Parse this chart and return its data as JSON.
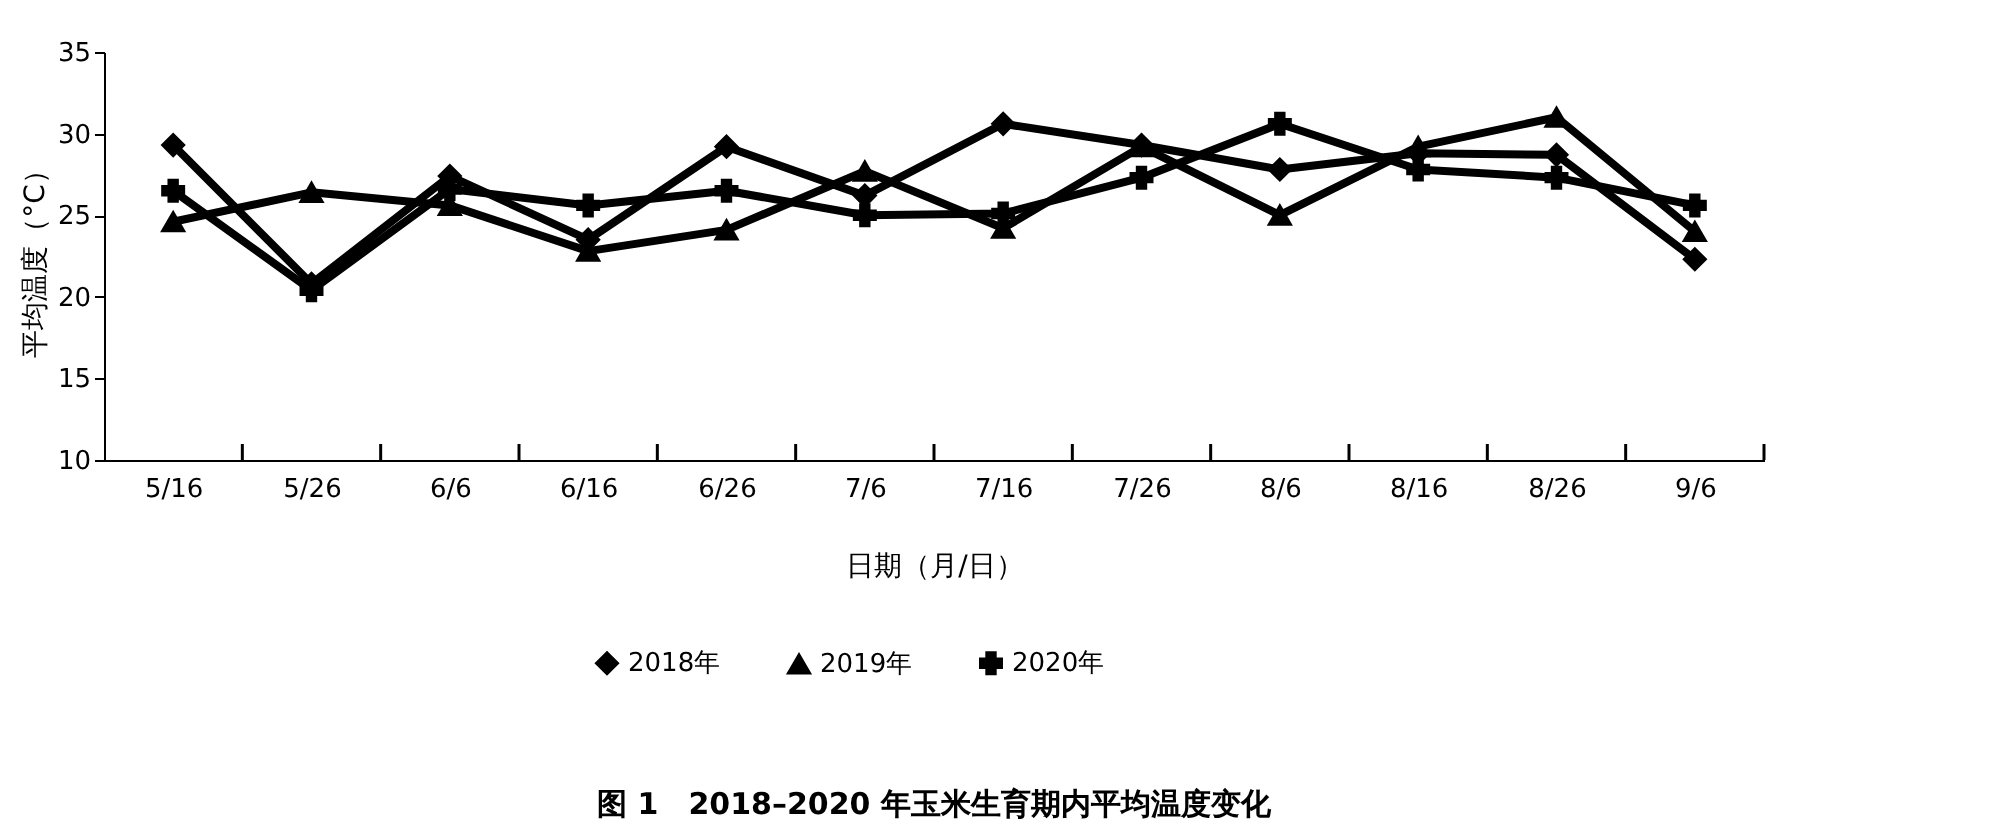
{
  "chart_data": {
    "type": "line",
    "title": "图 1　2018–2020 年玉米生育期内平均温度变化",
    "xlabel": "日期（月/日）",
    "ylabel": "平均温度（°C）",
    "categories": [
      "5/16",
      "5/26",
      "6/6",
      "6/16",
      "6/26",
      "7/6",
      "7/16",
      "7/26",
      "8/6",
      "8/16",
      "8/26",
      "9/6"
    ],
    "series": [
      {
        "name": "2018年",
        "color": "#000000",
        "marker": "diamond",
        "values": [
          29.3,
          20.8,
          27.4,
          23.5,
          29.2,
          26.2,
          30.6,
          29.3,
          27.8,
          28.8,
          28.7,
          22.3
        ]
      },
      {
        "name": "2019年",
        "color": "#000000",
        "marker": "triangle",
        "values": [
          24.6,
          26.4,
          25.6,
          22.8,
          24.1,
          27.7,
          24.2,
          29.2,
          25.0,
          29.2,
          31.0,
          24.0
        ]
      },
      {
        "name": "2020年",
        "color": "#000000",
        "marker": "cross",
        "values": [
          26.5,
          20.4,
          26.6,
          25.6,
          26.5,
          25.0,
          25.1,
          27.3,
          30.6,
          27.8,
          27.3,
          25.6
        ]
      }
    ],
    "ylim": [
      10,
      35
    ],
    "yticks": [
      10,
      15,
      20,
      25,
      30,
      35
    ],
    "grid": false,
    "legend": "bottom",
    "line_style": "solid"
  }
}
